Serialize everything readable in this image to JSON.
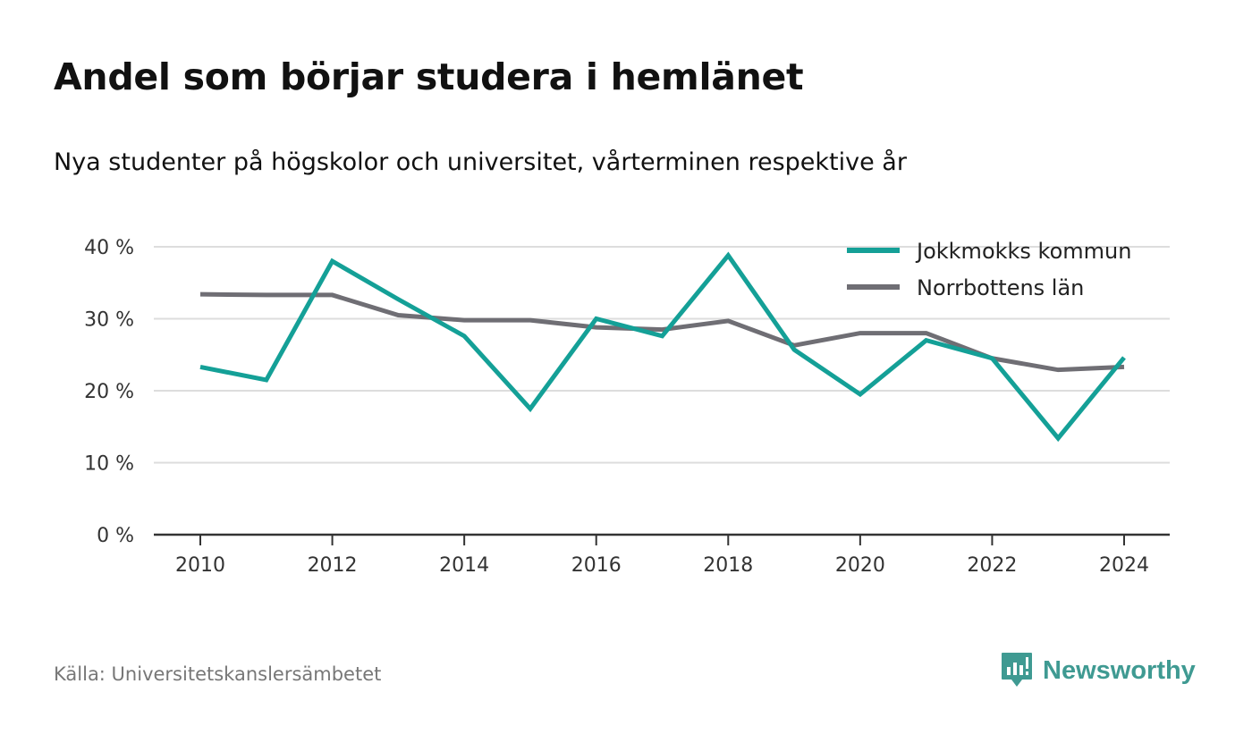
{
  "title": "Andel som börjar studera i hemlänet",
  "subtitle": "Nya studenter på högskolor och universitet, vårterminen respektive år",
  "source": "Källa: Universitetskanslersämbetet",
  "brand": {
    "name": "Newsworthy",
    "icon": "newsworthy-logo-icon",
    "color": "#3f9a92"
  },
  "chart_data": {
    "type": "line",
    "x": [
      2010,
      2011,
      2012,
      2013,
      2014,
      2015,
      2016,
      2017,
      2018,
      2019,
      2020,
      2021,
      2022,
      2023,
      2024
    ],
    "x_ticks": [
      2010,
      2012,
      2014,
      2016,
      2018,
      2020,
      2022,
      2024
    ],
    "x_tick_labels": [
      "2010",
      "2012",
      "2014",
      "2016",
      "2018",
      "2020",
      "2022",
      "2024"
    ],
    "y_ticks": [
      0,
      10,
      20,
      30,
      40
    ],
    "y_tick_labels": [
      "0 %",
      "10 %",
      "20 %",
      "30 %",
      "40 %"
    ],
    "ylim": [
      0,
      40
    ],
    "xlim": [
      2010,
      2024
    ],
    "grid": true,
    "legend_position": "top-right",
    "series": [
      {
        "name": "Jokkmokks kommun",
        "color": "#14a097",
        "values": [
          23.3,
          21.5,
          38.0,
          32.7,
          27.6,
          17.5,
          30.0,
          27.6,
          38.8,
          25.7,
          19.5,
          27.0,
          24.5,
          13.4,
          24.6
        ]
      },
      {
        "name": "Norrbottens län",
        "color": "#6f6e74",
        "values": [
          33.4,
          33.3,
          33.3,
          30.5,
          29.8,
          29.8,
          28.8,
          28.5,
          29.7,
          26.3,
          28.0,
          28.0,
          24.5,
          22.9,
          23.3
        ]
      }
    ]
  }
}
